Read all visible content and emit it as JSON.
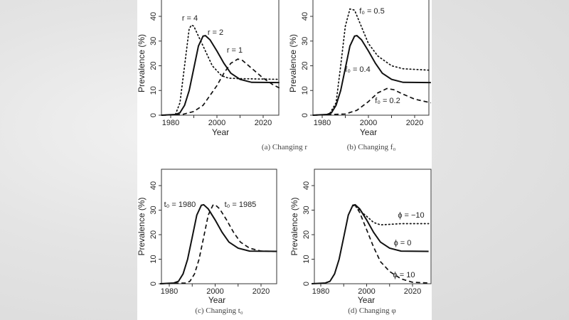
{
  "chart_data": [
    {
      "type": "line",
      "caption": "(a) Changing r",
      "xlabel": "Year",
      "ylabel": "Prevalence (%)",
      "xlim": [
        1976,
        2027
      ],
      "ylim": [
        0,
        45
      ],
      "xticks": [
        1980,
        2000,
        2020
      ],
      "yticks": [
        0,
        10,
        20,
        30,
        40
      ],
      "grid": false,
      "series": [
        {
          "name": "r = 4",
          "style": "dotted",
          "x": [
            1976,
            1982,
            1984,
            1986,
            1988,
            1989,
            1990,
            1992,
            1995,
            1998,
            2002,
            2005,
            2010,
            2027
          ],
          "y": [
            0,
            0.2,
            5,
            20,
            35,
            36.5,
            36,
            32,
            26,
            20,
            16,
            15,
            14.8,
            14.5
          ]
        },
        {
          "name": "r = 2",
          "style": "solid",
          "x": [
            1976,
            1982,
            1984,
            1986,
            1988,
            1990,
            1992,
            1994,
            1995,
            1997,
            2000,
            2003,
            2006,
            2010,
            2015,
            2027
          ],
          "y": [
            0,
            0.3,
            1,
            4,
            10,
            19,
            28,
            32,
            32.2,
            30.5,
            26,
            21,
            17,
            14.5,
            13.3,
            13.2
          ]
        },
        {
          "name": "r = 1",
          "style": "dashed",
          "x": [
            1976,
            1985,
            1990,
            1994,
            1997,
            2000,
            2003,
            2006,
            2009,
            2011,
            2015,
            2020,
            2024,
            2027
          ],
          "y": [
            0,
            0.3,
            1.5,
            4,
            8,
            12,
            17,
            21,
            22.7,
            22.2,
            19,
            15,
            12.5,
            11
          ]
        }
      ]
    },
    {
      "type": "line",
      "caption": "(b) Changing f₀",
      "xlabel": "Year",
      "ylabel": "Prevalence (%)",
      "xlim": [
        1976,
        2027
      ],
      "ylim": [
        0,
        45
      ],
      "xticks": [
        1980,
        2000,
        2020
      ],
      "yticks": [
        0,
        10,
        20,
        30,
        40
      ],
      "grid": false,
      "series": [
        {
          "name": "f₀ = 0.5",
          "style": "dotted",
          "x": [
            1976,
            1983,
            1986,
            1988,
            1990,
            1992,
            1994,
            1996,
            2000,
            2004,
            2010,
            2015,
            2027
          ],
          "y": [
            0,
            0.3,
            5,
            20,
            36,
            43,
            42.5,
            38,
            29,
            24,
            20,
            18.8,
            18.2
          ]
        },
        {
          "name": "f₀ = 0.4",
          "style": "solid",
          "x": [
            1976,
            1982,
            1984,
            1986,
            1988,
            1990,
            1992,
            1994,
            1995,
            1997,
            2000,
            2003,
            2006,
            2010,
            2015,
            2027
          ],
          "y": [
            0,
            0.3,
            1,
            4,
            10,
            19,
            28,
            32,
            32.2,
            30.5,
            26,
            21,
            17,
            14.5,
            13.3,
            13.2
          ]
        },
        {
          "name": "f₀ = 0.2",
          "style": "dashed",
          "x": [
            1976,
            1990,
            1995,
            2000,
            2004,
            2008,
            2011,
            2015,
            2020,
            2027
          ],
          "y": [
            0,
            0.5,
            2,
            5.5,
            9,
            10.8,
            10.3,
            8.5,
            6.5,
            5
          ]
        }
      ]
    },
    {
      "type": "line",
      "caption": "(c) Changing t₀",
      "xlabel": "Year",
      "ylabel": "Prevalence (%)",
      "xlim": [
        1976,
        2027
      ],
      "ylim": [
        0,
        45
      ],
      "xticks": [
        1980,
        2000,
        2020
      ],
      "yticks": [
        0,
        10,
        20,
        30,
        40
      ],
      "grid": false,
      "series": [
        {
          "name": "t₀ = 1980",
          "style": "solid",
          "x": [
            1976,
            1982,
            1984,
            1986,
            1988,
            1990,
            1992,
            1994,
            1995,
            1997,
            2000,
            2003,
            2006,
            2010,
            2015,
            2027
          ],
          "y": [
            0,
            0.3,
            1,
            4,
            10,
            19,
            28,
            32,
            32.2,
            30.5,
            26,
            21,
            17,
            14.5,
            13.3,
            13.2
          ]
        },
        {
          "name": "t₀ = 1985",
          "style": "dashed",
          "x": [
            1976,
            1987,
            1989,
            1991,
            1993,
            1995,
            1997,
            1999,
            2000,
            2002,
            2005,
            2008,
            2011,
            2015,
            2020,
            2027
          ],
          "y": [
            0,
            0.3,
            1,
            4,
            10,
            19,
            28,
            32,
            32.2,
            30.5,
            26,
            21,
            17,
            14.5,
            13.3,
            13.2
          ]
        }
      ]
    },
    {
      "type": "line",
      "caption": "(d) Changing φ",
      "xlabel": "Year",
      "ylabel": "Prevalence (%)",
      "xlim": [
        1976,
        2027
      ],
      "ylim": [
        0,
        45
      ],
      "xticks": [
        1980,
        2000,
        2020
      ],
      "yticks": [
        0,
        10,
        20,
        30,
        40
      ],
      "grid": false,
      "series": [
        {
          "name": "ϕ = −10",
          "style": "dotted",
          "x": [
            1994,
            1996,
            1998,
            2000,
            2003,
            2006,
            2010,
            2015,
            2027
          ],
          "y": [
            32,
            31,
            29,
            27.5,
            25,
            24,
            24.2,
            24.5,
            24.5
          ]
        },
        {
          "name": "ϕ = 0",
          "style": "solid",
          "x": [
            1976,
            1982,
            1984,
            1986,
            1988,
            1990,
            1992,
            1994,
            1995,
            1997,
            2000,
            2003,
            2006,
            2010,
            2015,
            2027
          ],
          "y": [
            0,
            0.3,
            1,
            4,
            10,
            19,
            28,
            32,
            32.2,
            30.5,
            26,
            21,
            17,
            14.5,
            13.3,
            13.2
          ]
        },
        {
          "name": "ϕ = 10",
          "style": "dashed",
          "x": [
            1994,
            1995,
            1997,
            2000,
            2003,
            2006,
            2010,
            2015,
            2020,
            2027
          ],
          "y": [
            32,
            32,
            29,
            22,
            15,
            9,
            5,
            2,
            0.6,
            0.3
          ]
        }
      ]
    }
  ]
}
